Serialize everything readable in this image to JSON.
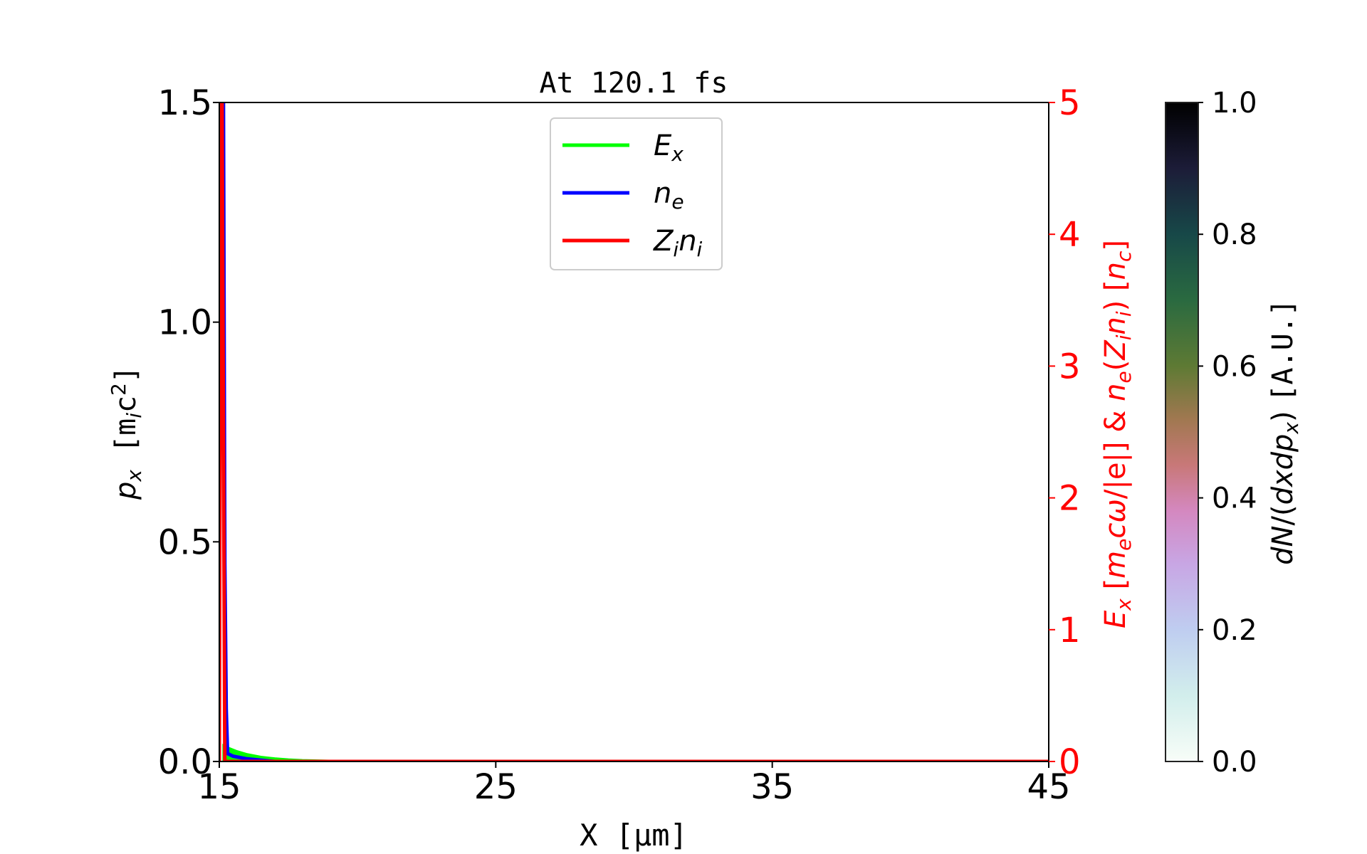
{
  "chart_data": {
    "type": "line",
    "title": "At 120.1 fs",
    "xlabel": "X [μm]",
    "ylabel_left": "p_x [m_ic^2]",
    "ylabel_right": "E_x [m_ecω/|e|] & n_e(Z_in_i) [n_c]",
    "colorbar_label": "dN/(dxdp_x) [A.U.]",
    "xlim": [
      15,
      45
    ],
    "ylim_left": [
      0,
      1.5
    ],
    "ylim_right": [
      0,
      5
    ],
    "colorbar_lim": [
      0,
      1
    ],
    "xticks": [
      "15",
      "25",
      "35",
      "45"
    ],
    "yticks_left": [
      "0.0",
      "0.5",
      "1.0",
      "1.5"
    ],
    "yticks_right": [
      "0",
      "1",
      "2",
      "3",
      "4",
      "5"
    ],
    "colorbar_ticks": [
      "0.0",
      "0.2",
      "0.4",
      "0.6",
      "0.8",
      "1.0"
    ],
    "legend_placement": "upper-center",
    "grid": false,
    "series": [
      {
        "name": "E_x",
        "color": "#00ff00",
        "x": [
          15.15,
          15.3,
          15.6,
          16.0,
          16.5,
          17.0,
          17.5,
          18.0,
          19.0,
          45
        ],
        "y": [
          0.12,
          0.1,
          0.075,
          0.05,
          0.03,
          0.018,
          0.01,
          0.005,
          0.0,
          0.0
        ]
      },
      {
        "name": "n_e",
        "color": "#0000ff",
        "x": [
          15.15,
          15.2,
          15.25,
          15.3,
          15.5,
          16.0,
          17.0,
          45
        ],
        "y": [
          5.0,
          1.5,
          0.4,
          0.06,
          0.04,
          0.02,
          0.0,
          0.0
        ]
      },
      {
        "name": "Z_in_i",
        "color": "#ff0000",
        "x": [
          15.0,
          15.05,
          15.1,
          15.2,
          45
        ],
        "y": [
          0.0,
          5.0,
          5.0,
          0.0,
          0.0
        ]
      }
    ],
    "colors": {
      "right_axis": "#ff0000"
    }
  }
}
